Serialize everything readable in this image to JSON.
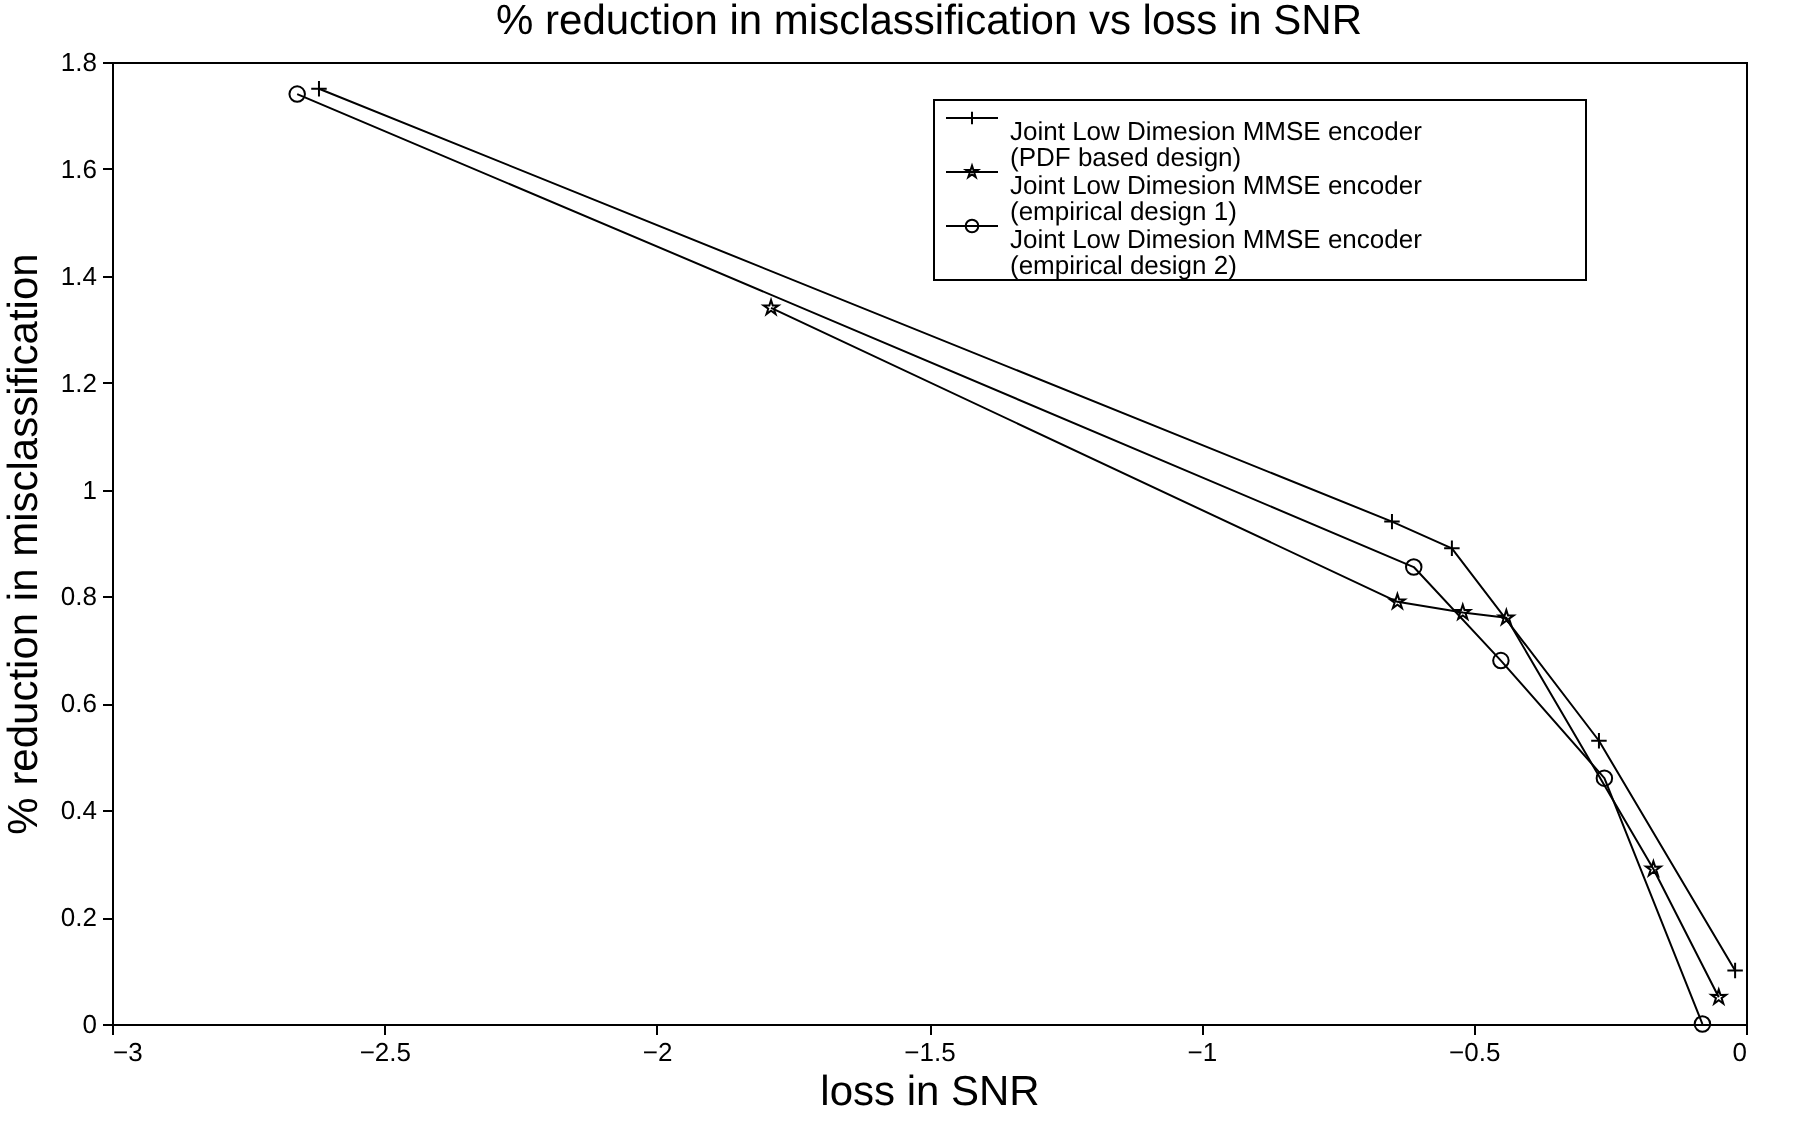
{
  "chart_data": {
    "type": "line",
    "title": "% reduction in misclassification vs loss in SNR",
    "xlabel": "loss in SNR",
    "ylabel": "% reduction in misclassification",
    "xlim": [
      -3,
      0
    ],
    "xticks": [
      -3,
      -2.5,
      -2,
      -1.5,
      -1,
      -0.5,
      0
    ],
    "ylim": [
      0,
      1.8
    ],
    "yticks": [
      0,
      0.2,
      0.4,
      0.6,
      0.8,
      1,
      1.2,
      1.4,
      1.6,
      1.8
    ],
    "grid": false,
    "legend": "top right",
    "line_style": "solid",
    "series": [
      {
        "name": "Joint Low Dimesion MMSE encoder (PDF based design)",
        "color": "#000000",
        "marker": "cross",
        "x": [
          -2.62,
          -0.65,
          -0.54,
          -0.27,
          -0.02
        ],
        "values": [
          1.75,
          0.94,
          0.89,
          0.53,
          0.1
        ]
      },
      {
        "name": "Joint Low Dimesion MMSE encoder (empirical design 1)",
        "color": "#000000",
        "marker": "star",
        "x": [
          -1.79,
          -0.64,
          -0.52,
          -0.44,
          -0.17,
          -0.05
        ],
        "values": [
          1.34,
          0.79,
          0.77,
          0.76,
          0.29,
          0.05
        ]
      },
      {
        "name": "Joint Low Dimesion MMSE encoder (empirical design 2)",
        "color": "#000000",
        "marker": "circle",
        "x": [
          -2.66,
          -0.61,
          -0.45,
          -0.26,
          -0.08
        ],
        "values": [
          1.74,
          0.855,
          0.68,
          0.46,
          0.0
        ]
      }
    ]
  }
}
